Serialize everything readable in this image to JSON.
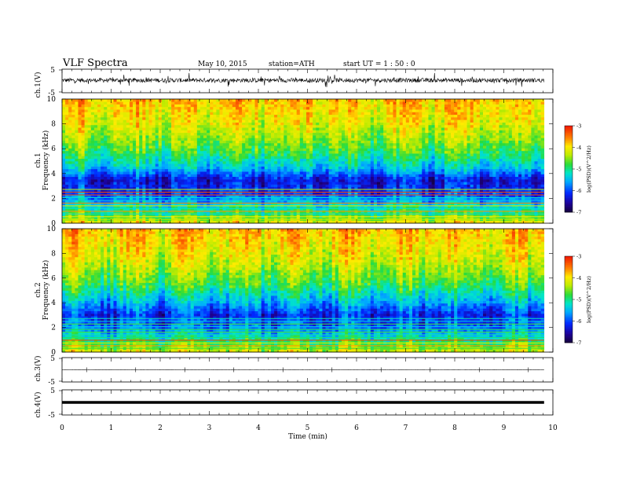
{
  "header": {
    "title": "VLF  Spectra",
    "date": "May 10, 2015",
    "station": "station=ATH",
    "start": "start  UT  =   1  : 50 : 0"
  },
  "chart_data": {
    "type": "heatmap",
    "x_label": "Time  (min)",
    "x_range": [
      0,
      10
    ],
    "x_ticks": [
      "0",
      "1",
      "2",
      "3",
      "4",
      "5",
      "6",
      "7",
      "8",
      "9",
      "10"
    ],
    "record_end_min": 9.82,
    "panels": [
      {
        "name": "ch.1",
        "type": "line",
        "ylabel": "ch.1(V)",
        "yticks": [
          "5",
          "-5"
        ],
        "ylim": [
          -5,
          5
        ],
        "description_level": 0.3,
        "amplitude": 1.8
      },
      {
        "name": "ch.1",
        "type": "heatmap",
        "channel_label": "ch.1",
        "ylabel": "Frequency  (kHz)",
        "yticks": [
          "0",
          "2",
          "4",
          "6",
          "8",
          "10"
        ],
        "ylim": [
          0,
          10
        ],
        "colorbar": {
          "label": "log(PSD)(V^2/Hz)",
          "ticks": [
            "-3",
            "-4",
            "-5",
            "-6",
            "-7"
          ],
          "range": [
            -7,
            -3
          ]
        },
        "band_profile": [
          {
            "freq": 0.0,
            "log_psd": -4.0
          },
          {
            "freq": 0.5,
            "log_psd": -4.6
          },
          {
            "freq": 1.5,
            "log_psd": -5.3
          },
          {
            "freq": 2.5,
            "log_psd": -6.1
          },
          {
            "freq": 3.5,
            "log_psd": -6.3
          },
          {
            "freq": 4.5,
            "log_psd": -5.4
          },
          {
            "freq": 6.0,
            "log_psd": -4.7
          },
          {
            "freq": 8.0,
            "log_psd": -4.1
          },
          {
            "freq": 10.0,
            "log_psd": -3.8
          }
        ]
      },
      {
        "name": "ch.2",
        "type": "heatmap",
        "channel_label": "ch.2",
        "ylabel": "Frequency  (kHz)",
        "yticks": [
          "0",
          "2",
          "4",
          "6",
          "8",
          "10"
        ],
        "ylim": [
          0,
          10
        ],
        "colorbar": {
          "label": "log(PSD)(V^2/Hz)",
          "ticks": [
            "-3",
            "-4",
            "-5",
            "-6",
            "-7"
          ],
          "range": [
            -7,
            -3
          ]
        },
        "band_profile": [
          {
            "freq": 0.0,
            "log_psd": -4.2
          },
          {
            "freq": 1.0,
            "log_psd": -5.0
          },
          {
            "freq": 2.0,
            "log_psd": -5.8
          },
          {
            "freq": 3.0,
            "log_psd": -6.2
          },
          {
            "freq": 4.0,
            "log_psd": -5.6
          },
          {
            "freq": 5.5,
            "log_psd": -4.8
          },
          {
            "freq": 7.5,
            "log_psd": -4.2
          },
          {
            "freq": 10.0,
            "log_psd": -3.8
          }
        ]
      },
      {
        "name": "ch.3",
        "type": "line",
        "ylabel": "ch.3(V)",
        "yticks": [
          "5",
          "-5"
        ],
        "ylim": [
          -5,
          5
        ],
        "description_level": 0.0,
        "amplitude": 0.1
      },
      {
        "name": "ch.4",
        "type": "line",
        "ylabel": "ch.4(V)",
        "yticks": [
          "5",
          "-5"
        ],
        "ylim": [
          -5,
          5
        ],
        "description_level": 0.0,
        "amplitude": 0.0
      }
    ]
  }
}
